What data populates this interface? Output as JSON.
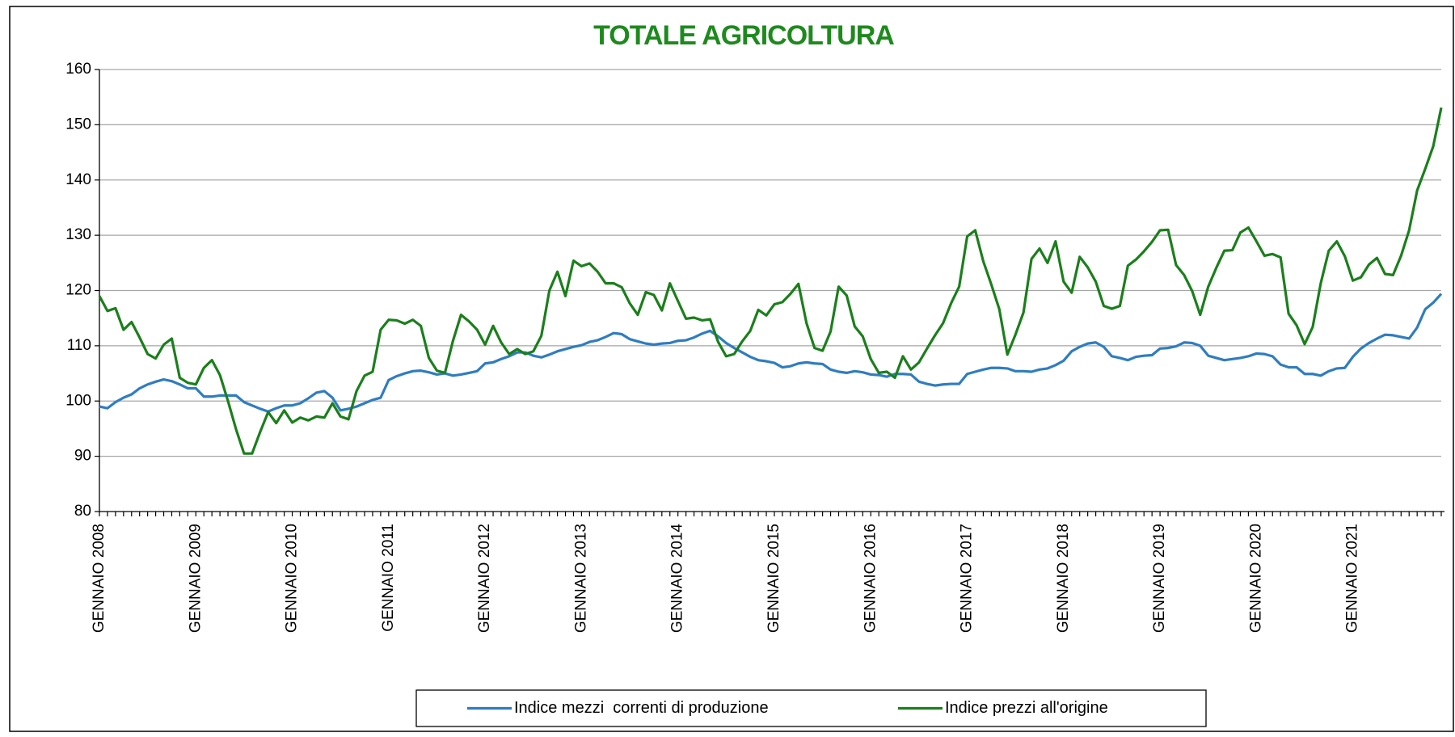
{
  "chart_data": {
    "type": "line",
    "title": "TOTALE AGRICOLTURA",
    "categories": [
      "GENNAIO 2008",
      null,
      null,
      null,
      null,
      null,
      null,
      null,
      null,
      null,
      null,
      null,
      "GENNAIO 2009",
      null,
      null,
      null,
      null,
      null,
      null,
      null,
      null,
      null,
      null,
      null,
      "GENNAIO 2010",
      null,
      null,
      null,
      null,
      null,
      null,
      null,
      null,
      null,
      null,
      null,
      "GENNAIO 2011",
      null,
      null,
      null,
      null,
      null,
      null,
      null,
      null,
      null,
      null,
      null,
      "GENNAIO 2012",
      null,
      null,
      null,
      null,
      null,
      null,
      null,
      null,
      null,
      null,
      null,
      "GENNAIO 2013",
      null,
      null,
      null,
      null,
      null,
      null,
      null,
      null,
      null,
      null,
      null,
      "GENNAIO 2014",
      null,
      null,
      null,
      null,
      null,
      null,
      null,
      null,
      null,
      null,
      null,
      "GENNAIO 2015",
      null,
      null,
      null,
      null,
      null,
      null,
      null,
      null,
      null,
      null,
      null,
      "GENNAIO 2016",
      null,
      null,
      null,
      null,
      null,
      null,
      null,
      null,
      null,
      null,
      null,
      "GENNAIO 2017",
      null,
      null,
      null,
      null,
      null,
      null,
      null,
      null,
      null,
      null,
      null,
      "GENNAIO 2018",
      null,
      null,
      null,
      null,
      null,
      null,
      null,
      null,
      null,
      null,
      null,
      "GENNAIO 2019",
      null,
      null,
      null,
      null,
      null,
      null,
      null,
      null,
      null,
      null,
      null,
      "GENNAIO 2020",
      null,
      null,
      null,
      null,
      null,
      null,
      null,
      null,
      null,
      null,
      null,
      "GENNAIO 2021",
      null,
      null,
      null,
      null,
      null,
      null,
      null,
      null,
      null,
      null,
      null
    ],
    "series": [
      {
        "name": "Indice mezzi  correnti di produzione",
        "color": "#2f7dc0",
        "values": [
          99,
          98.7,
          99.8,
          100.6,
          101.2,
          102.3,
          103,
          103.5,
          103.9,
          103.6,
          103,
          102.3,
          102.3,
          100.8,
          100.8,
          101,
          101,
          101,
          99.8,
          99.2,
          98.6,
          98.1,
          98.7,
          99.2,
          99.2,
          99.6,
          100.5,
          101.5,
          101.8,
          100.6,
          98.3,
          98.6,
          99,
          99.6,
          100.2,
          100.6,
          103.8,
          104.5,
          105,
          105.4,
          105.5,
          105.2,
          104.8,
          105,
          104.6,
          104.8,
          105.1,
          105.4,
          106.8,
          107,
          107.6,
          108.1,
          108.8,
          108.8,
          108.2,
          107.9,
          108.4,
          109,
          109.4,
          109.8,
          110.1,
          110.7,
          111,
          111.6,
          112.3,
          112.1,
          111.2,
          110.8,
          110.4,
          110.2,
          110.4,
          110.5,
          110.9,
          111,
          111.5,
          112.2,
          112.7,
          111.7,
          110.5,
          109.6,
          108.8,
          108,
          107.4,
          107.2,
          106.9,
          106.1,
          106.3,
          106.8,
          107,
          106.8,
          106.7,
          105.7,
          105.3,
          105.1,
          105.4,
          105.2,
          104.8,
          104.7,
          104.4,
          104.9,
          104.9,
          104.8,
          103.5,
          103.1,
          102.8,
          103,
          103.1,
          103.1,
          104.9,
          105.3,
          105.7,
          106,
          106,
          105.9,
          105.4,
          105.4,
          105.3,
          105.7,
          105.9,
          106.5,
          107.3,
          109,
          109.8,
          110.4,
          110.6,
          109.8,
          108.1,
          107.8,
          107.4,
          108,
          108.2,
          108.3,
          109.5,
          109.6,
          109.9,
          110.6,
          110.5,
          110,
          108.2,
          107.8,
          107.4,
          107.6,
          107.8,
          108.1,
          108.6,
          108.5,
          108.1,
          106.6,
          106.1,
          106.1,
          104.9,
          104.9,
          104.6,
          105.4,
          105.9,
          106,
          108,
          109.5,
          110.5,
          111.3,
          112,
          111.9,
          111.6,
          111.3,
          113.3,
          116.6,
          117.8,
          119.4
        ]
      },
      {
        "name": "Indice prezzi all'origine",
        "color": "#1b7f1b",
        "values": [
          119,
          116.3,
          116.8,
          112.9,
          114.3,
          111.5,
          108.5,
          107.7,
          110.2,
          111.3,
          104.2,
          103.3,
          103,
          106,
          107.4,
          104.7,
          100,
          94.9,
          90.5,
          90.5,
          94.4,
          98,
          96,
          98.3,
          96.1,
          97,
          96.5,
          97.2,
          97,
          99.6,
          97.2,
          96.7,
          101.8,
          104.6,
          105.3,
          112.9,
          114.7,
          114.6,
          114,
          114.7,
          113.6,
          107.8,
          105.5,
          105.1,
          110.9,
          115.6,
          114.4,
          112.9,
          110.2,
          113.6,
          110.6,
          108.5,
          109.4,
          108.5,
          109,
          111.8,
          120,
          123.4,
          119,
          125.4,
          124.4,
          124.9,
          123.4,
          121.3,
          121.3,
          120.6,
          117.7,
          115.6,
          119.7,
          119.2,
          116.4,
          121.3,
          118.1,
          114.9,
          115.1,
          114.6,
          114.8,
          110.7,
          108.1,
          108.5,
          110.8,
          112.7,
          116.5,
          115.5,
          117.5,
          117.9,
          119.4,
          121.2,
          114.1,
          109.6,
          109.1,
          112.6,
          120.7,
          119.1,
          113.5,
          111.7,
          107.6,
          105.1,
          105.3,
          104.2,
          108.1,
          105.7,
          107,
          109.5,
          111.9,
          114.1,
          117.7,
          120.7,
          129.8,
          130.9,
          125.3,
          121.1,
          116.6,
          108.4,
          112,
          116,
          125.7,
          127.6,
          125,
          128.9,
          121.6,
          119.6,
          126.1,
          124.2,
          121.6,
          117.2,
          116.7,
          117.2,
          124.5,
          125.6,
          127.1,
          128.8,
          130.9,
          131,
          124.6,
          122.8,
          119.9,
          115.6,
          120.7,
          124.1,
          127.2,
          127.3,
          130.5,
          131.4,
          128.9,
          126.3,
          126.6,
          126,
          115.8,
          113.7,
          110.3,
          113.4,
          121.3,
          127.2,
          128.9,
          126.2,
          121.8,
          122.4,
          124.7,
          125.9,
          123,
          122.8,
          126.3,
          130.9,
          138.1,
          142,
          146.1,
          153.1
        ]
      }
    ],
    "ylim": [
      80,
      160
    ],
    "yticks": [
      80,
      90,
      100,
      110,
      120,
      130,
      140,
      150,
      160
    ],
    "grid": true,
    "legend": "bottom",
    "title_color": "#1e8a1e"
  }
}
